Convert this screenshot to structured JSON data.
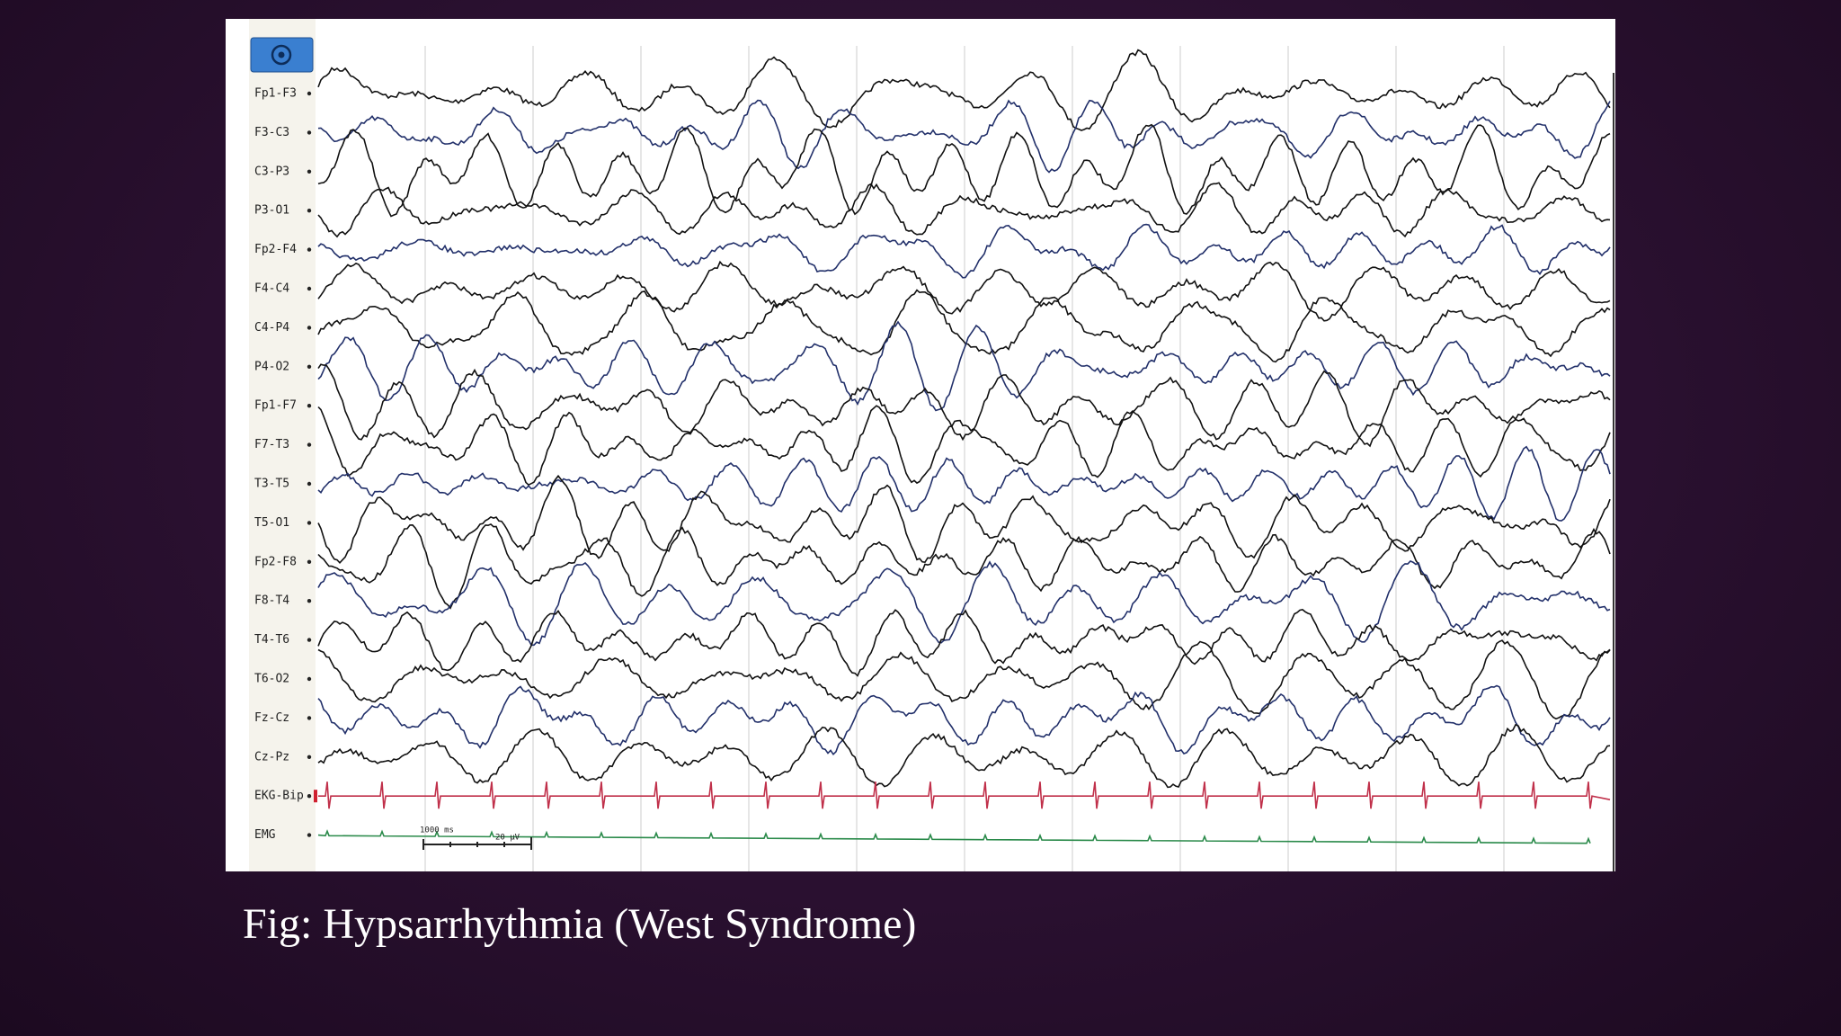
{
  "figure": {
    "channels": [
      "Fp1-F3",
      "F3-C3",
      "C3-P3",
      "P3-O1",
      "Fp2-F4",
      "F4-C4",
      "C4-P4",
      "P4-O2",
      "Fp1-F7",
      "F7-T3",
      "T3-T5",
      "T5-O1",
      "Fp2-F8",
      "F8-T4",
      "T4-T6",
      "T6-O2",
      "Fz-Cz",
      "Cz-Pz",
      "EKG-Bip",
      "EMG"
    ],
    "scale": {
      "time": "1000 ms",
      "amplitude": "20 µV"
    }
  },
  "caption": "Fig: Hypsarrhythmia (West Syndrome)"
}
